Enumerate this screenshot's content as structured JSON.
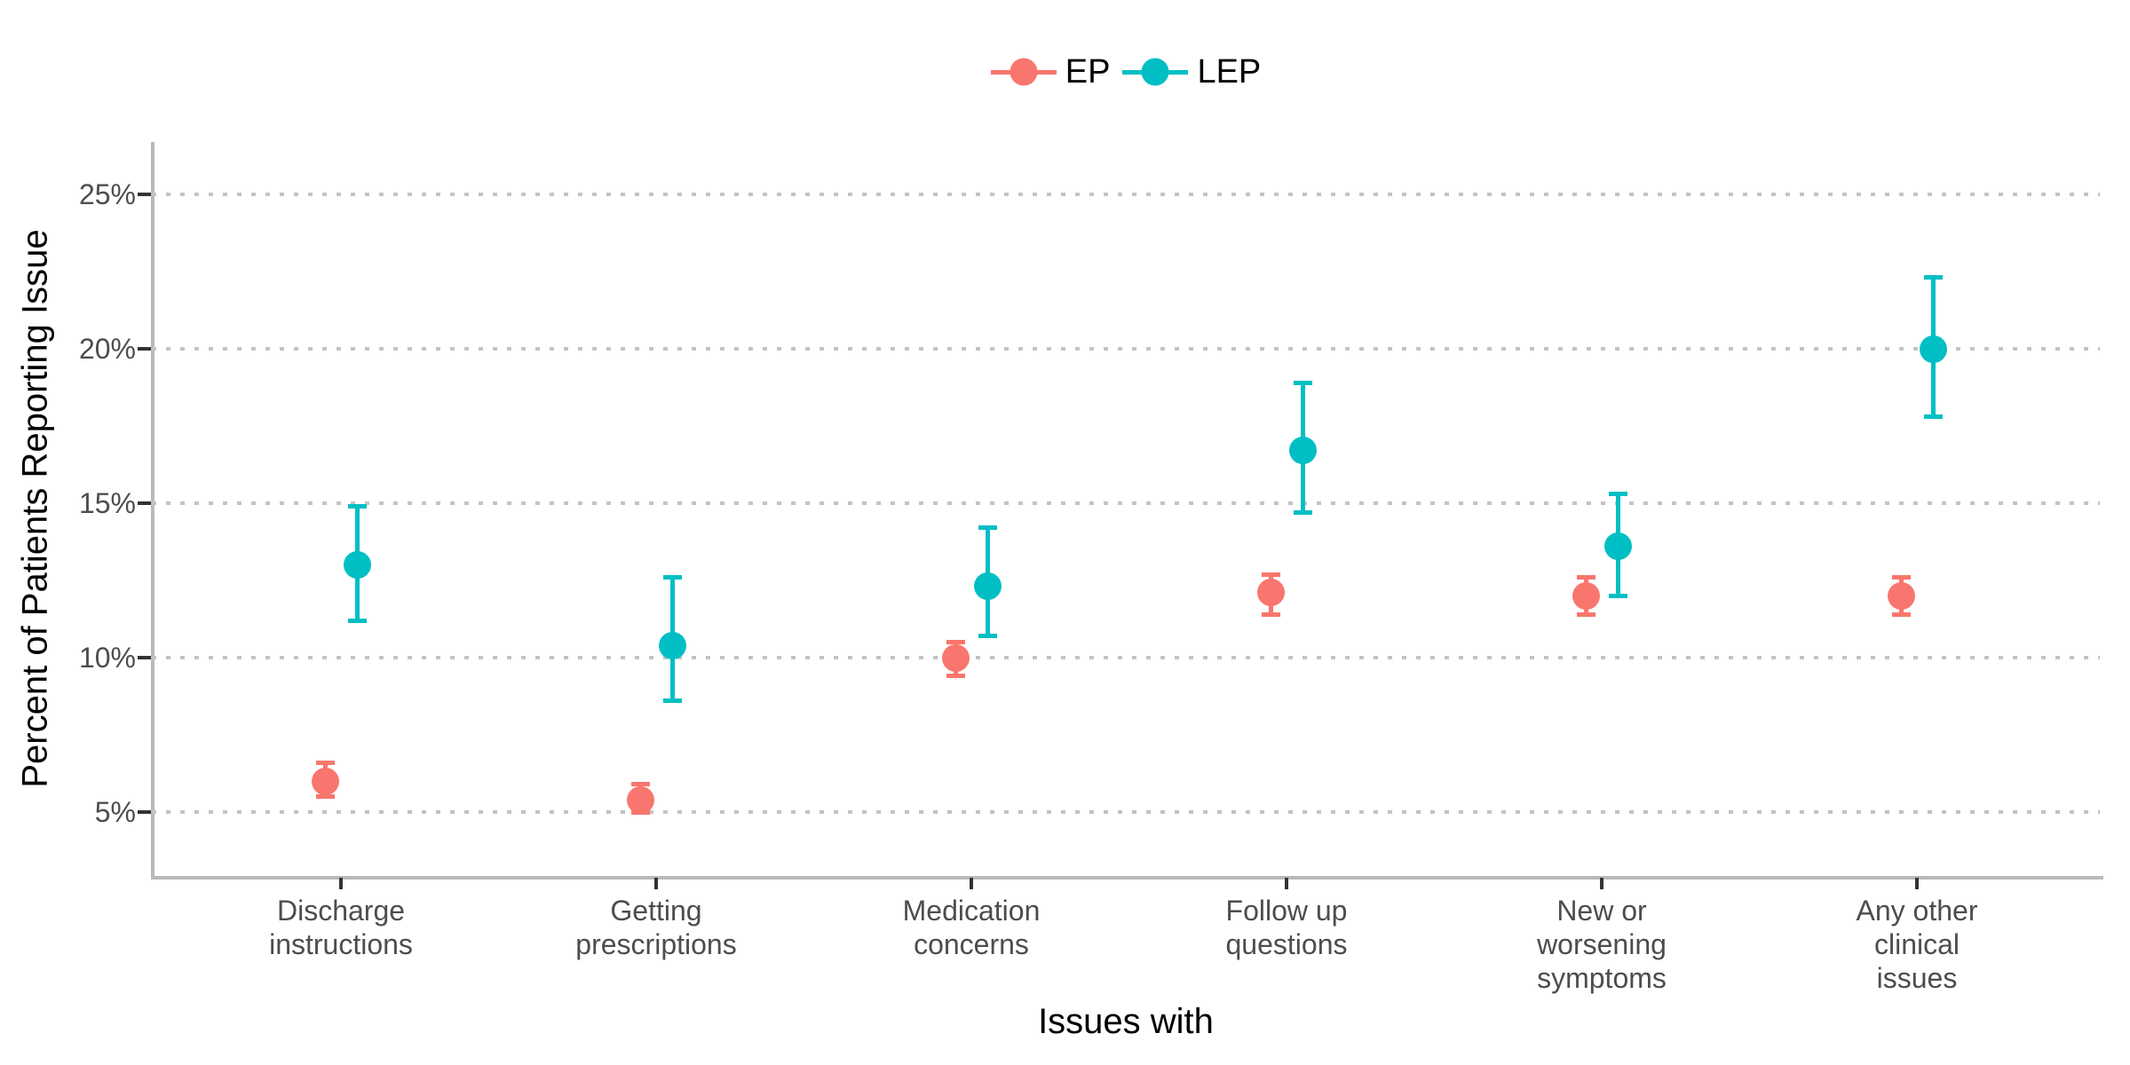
{
  "legend": {
    "items": [
      {
        "label": "EP",
        "color": "#F8766D"
      },
      {
        "label": "LEP",
        "color": "#00BFC4"
      }
    ]
  },
  "axes": {
    "y_title": "Percent of Patients Reporting Issue",
    "x_title": "Issues with"
  },
  "chart_data": {
    "type": "scatter",
    "title": "",
    "xlabel": "Issues with",
    "ylabel": "Percent of Patients Reporting Issue",
    "categories": [
      "Discharge instructions",
      "Getting prescriptions",
      "Medication concerns",
      "Follow up questions",
      "New or worsening symptoms",
      "Any other clinical issues"
    ],
    "category_label_lines": [
      [
        "Discharge",
        "instructions"
      ],
      [
        "Getting",
        "prescriptions"
      ],
      [
        "Medication",
        "concerns"
      ],
      [
        "Follow up",
        "questions"
      ],
      [
        "New or",
        "worsening",
        "symptoms"
      ],
      [
        "Any other",
        "clinical",
        "issues"
      ]
    ],
    "series": [
      {
        "name": "EP",
        "color": "#F8766D",
        "values": [
          6.0,
          5.4,
          10.0,
          12.1,
          12.0,
          12.0
        ],
        "ci_low": [
          5.5,
          5.0,
          9.4,
          11.4,
          11.4,
          11.4
        ],
        "ci_high": [
          6.6,
          5.9,
          10.5,
          12.7,
          12.6,
          12.6
        ]
      },
      {
        "name": "LEP",
        "color": "#00BFC4",
        "values": [
          13.0,
          10.4,
          12.3,
          16.7,
          13.6,
          20.0
        ],
        "ci_low": [
          11.2,
          8.6,
          10.7,
          14.7,
          12.0,
          17.8
        ],
        "ci_high": [
          14.9,
          12.6,
          14.2,
          18.9,
          15.3,
          22.3
        ]
      }
    ],
    "y_ticks": [
      5,
      10,
      15,
      20,
      25
    ],
    "y_tick_labels": [
      "5%",
      "10%",
      "15%",
      "20%",
      "25%"
    ],
    "ylim": [
      3.0,
      26.5
    ],
    "units": "percent",
    "grid": "horizontal dotted major gridlines only",
    "legend_position": "top-center",
    "error_bars": true
  }
}
